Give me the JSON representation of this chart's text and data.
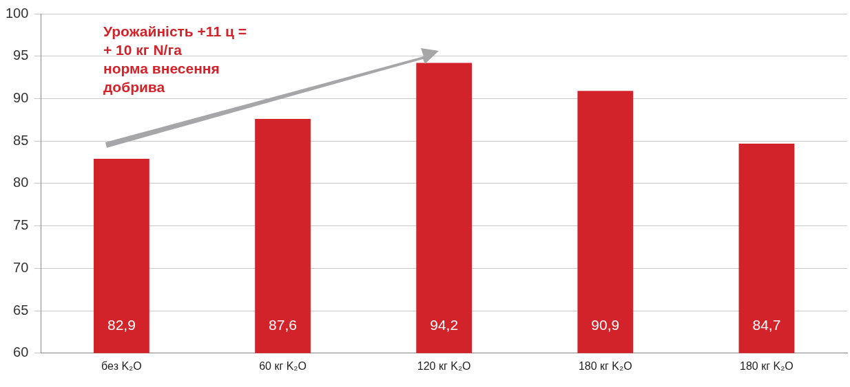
{
  "chart_data": {
    "type": "bar",
    "categories": [
      "без K₂O",
      "60 кг K₂O",
      "120 кг K₂O",
      "180 кг K₂O",
      "180 кг K₂O"
    ],
    "values": [
      82.9,
      87.6,
      94.2,
      90.9,
      84.7
    ],
    "value_labels": [
      "82,9",
      "87,6",
      "94,2",
      "90,9",
      "84,7"
    ],
    "color": "#d2232a",
    "ylim": [
      60,
      100
    ],
    "yticks": [
      60,
      65,
      70,
      75,
      80,
      85,
      90,
      95,
      100
    ],
    "grid": "y",
    "legend": false,
    "annotations": [
      "Урожайність +11 ц =\n+ 10 кг N/га\nнорма внесення\nдобрива"
    ]
  }
}
